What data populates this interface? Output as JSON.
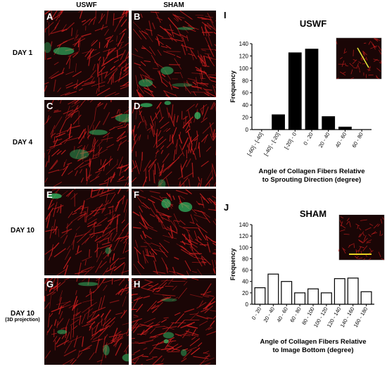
{
  "figure": {
    "column_headers": [
      "USWF",
      "SHAM"
    ],
    "row_labels": [
      {
        "main": "DAY 1",
        "sub": ""
      },
      {
        "main": "DAY 4",
        "sub": ""
      },
      {
        "main": "DAY 10",
        "sub": ""
      },
      {
        "main": "DAY 10",
        "sub": "(3D projection)"
      }
    ],
    "panel_letters": [
      "A",
      "B",
      "C",
      "D",
      "E",
      "F",
      "G",
      "H"
    ],
    "colors": {
      "collagen": "#c81e1e",
      "vessel": "#34c46a",
      "background": "#1a0606"
    }
  },
  "chart_data": [
    {
      "type": "bar",
      "panel_letter": "I",
      "title": "USWF",
      "categories": [
        "[-60] - [-40]",
        "[-40] - [-20]",
        "[-20] - 0",
        "0 - 20",
        "20 - 40",
        "40 - 60",
        "60 - 80"
      ],
      "values": [
        0,
        24,
        125,
        131,
        21,
        4,
        0
      ],
      "xlabel": "Angle of Collagen Fibers Relative to Sprouting Direction (degree)",
      "xlabel_lines": [
        "Angle of Collagen Fibers Relative",
        "to Sprouting Direction (degree)"
      ],
      "ylabel": "Frequency",
      "ylim": [
        0,
        140
      ],
      "yticks": [
        0,
        20,
        40,
        60,
        80,
        100,
        120,
        140
      ],
      "bar_fill": "#000000",
      "grid": false
    },
    {
      "type": "bar",
      "panel_letter": "J",
      "title": "SHAM",
      "categories": [
        "0 - 20",
        "20 - 40",
        "40 - 60",
        "60 - 80",
        "80 - 100",
        "100 - 120",
        "120 - 140",
        "140 - 160",
        "160 - 180"
      ],
      "values": [
        29,
        53,
        40,
        20,
        27,
        20,
        45,
        46,
        22
      ],
      "xlabel": "Angle of Collagen Fibers Relative to Image Bottom (degree)",
      "xlabel_lines": [
        "Angle of Collagen Fibers Relative",
        "to Image Bottom (degree)"
      ],
      "ylabel": "Frequency",
      "ylim": [
        0,
        140
      ],
      "yticks": [
        0,
        20,
        40,
        60,
        80,
        100,
        120,
        140
      ],
      "bar_fill": "#ffffff",
      "grid": false
    }
  ]
}
